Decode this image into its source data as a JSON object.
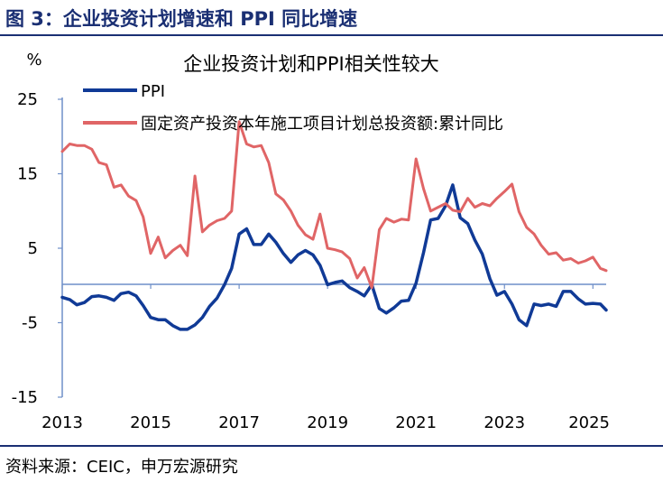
{
  "figure": {
    "title": "图 3：企业投资计划增速和 PPI 同比增速",
    "source": "资料来源：CEIC，申万宏源研究"
  },
  "colors": {
    "header": "#1a2f73",
    "ppi": "#103a96",
    "fixed_investment": "#e06566",
    "axis": "#6f8fc8"
  },
  "chart_data": {
    "type": "line",
    "title": "企业投资计划和PPI相关性较大",
    "ylabel": "%",
    "xlabel": "",
    "ylim": [
      -15,
      25
    ],
    "yticks": [
      25,
      15,
      5,
      -5,
      -15
    ],
    "xlim": [
      2013,
      2025.3
    ],
    "xticks": [
      2013,
      2015,
      2017,
      2019,
      2021,
      2023,
      2025
    ],
    "grid": false,
    "legend_position": "top-left",
    "series": [
      {
        "name": "PPI",
        "color": "#103a96",
        "x": [
          2013.0,
          2013.17,
          2013.33,
          2013.5,
          2013.67,
          2013.83,
          2014.0,
          2014.17,
          2014.33,
          2014.5,
          2014.67,
          2014.83,
          2015.0,
          2015.17,
          2015.33,
          2015.5,
          2015.67,
          2015.83,
          2016.0,
          2016.17,
          2016.33,
          2016.5,
          2016.67,
          2016.83,
          2017.0,
          2017.17,
          2017.33,
          2017.5,
          2017.67,
          2017.83,
          2018.0,
          2018.17,
          2018.33,
          2018.5,
          2018.67,
          2018.83,
          2019.0,
          2019.17,
          2019.33,
          2019.5,
          2019.67,
          2019.83,
          2020.0,
          2020.17,
          2020.33,
          2020.5,
          2020.67,
          2020.83,
          2021.0,
          2021.17,
          2021.33,
          2021.5,
          2021.67,
          2021.83,
          2022.0,
          2022.17,
          2022.33,
          2022.5,
          2022.67,
          2022.83,
          2023.0,
          2023.17,
          2023.33,
          2023.5,
          2023.67,
          2023.83,
          2024.0,
          2024.17,
          2024.33,
          2024.5,
          2024.67,
          2024.83,
          2025.0,
          2025.17,
          2025.3
        ],
        "values": [
          -1.6,
          -1.9,
          -2.6,
          -2.3,
          -1.5,
          -1.4,
          -1.6,
          -2.0,
          -1.1,
          -0.9,
          -1.4,
          -2.7,
          -4.3,
          -4.6,
          -4.6,
          -5.4,
          -5.9,
          -5.9,
          -5.3,
          -4.3,
          -2.8,
          -1.7,
          0.1,
          2.3,
          6.9,
          7.6,
          5.5,
          5.5,
          6.9,
          5.8,
          4.3,
          3.1,
          4.1,
          4.7,
          4.1,
          2.7,
          0.1,
          0.4,
          0.6,
          -0.3,
          -0.8,
          -1.4,
          0.1,
          -3.1,
          -3.7,
          -3.0,
          -2.1,
          -2.0,
          0.3,
          4.4,
          8.8,
          9.0,
          10.7,
          13.5,
          9.1,
          8.3,
          6.1,
          4.2,
          0.9,
          -1.3,
          -0.8,
          -2.5,
          -4.6,
          -5.4,
          -2.5,
          -2.7,
          -2.5,
          -2.8,
          -0.8,
          -0.8,
          -1.8,
          -2.5,
          -2.4,
          -2.5,
          -3.3
        ]
      },
      {
        "name": "固定资产投资本年施工项目计划总投资额:累计同比",
        "color": "#e06566",
        "x": [
          2013.0,
          2013.17,
          2013.33,
          2013.5,
          2013.67,
          2013.83,
          2014.0,
          2014.17,
          2014.33,
          2014.5,
          2014.67,
          2014.83,
          2015.0,
          2015.17,
          2015.33,
          2015.5,
          2015.67,
          2015.83,
          2016.0,
          2016.17,
          2016.33,
          2016.5,
          2016.67,
          2016.83,
          2017.0,
          2017.17,
          2017.33,
          2017.5,
          2017.67,
          2017.83,
          2018.0,
          2018.17,
          2018.33,
          2018.5,
          2018.67,
          2018.83,
          2019.0,
          2019.17,
          2019.33,
          2019.5,
          2019.67,
          2019.83,
          2020.0,
          2020.17,
          2020.33,
          2020.5,
          2020.67,
          2020.83,
          2021.0,
          2021.17,
          2021.33,
          2021.5,
          2021.67,
          2021.83,
          2022.0,
          2022.17,
          2022.33,
          2022.5,
          2022.67,
          2022.83,
          2023.0,
          2023.17,
          2023.33,
          2023.5,
          2023.67,
          2023.83,
          2024.0,
          2024.17,
          2024.33,
          2024.5,
          2024.67,
          2024.83,
          2025.0,
          2025.17,
          2025.3
        ],
        "values": [
          18.0,
          19.0,
          18.8,
          18.8,
          18.3,
          16.5,
          16.2,
          13.2,
          13.5,
          12.0,
          11.4,
          9.2,
          4.3,
          6.5,
          3.7,
          4.7,
          5.4,
          4.0,
          14.7,
          7.2,
          8.1,
          8.7,
          9.0,
          10.0,
          22.0,
          19.0,
          18.6,
          18.8,
          16.5,
          12.3,
          11.5,
          10.0,
          8.1,
          6.8,
          6.2,
          9.6,
          5.0,
          4.8,
          4.5,
          3.6,
          1.0,
          2.4,
          -0.3,
          7.5,
          9.0,
          8.5,
          8.9,
          8.8,
          17.0,
          13.0,
          10.0,
          10.5,
          11.0,
          10.1,
          9.9,
          11.7,
          10.5,
          11.0,
          10.7,
          11.7,
          12.6,
          13.6,
          9.9,
          7.8,
          6.9,
          5.4,
          4.2,
          4.4,
          3.4,
          3.6,
          3.0,
          3.3,
          3.8,
          2.3,
          2.0
        ]
      }
    ]
  }
}
